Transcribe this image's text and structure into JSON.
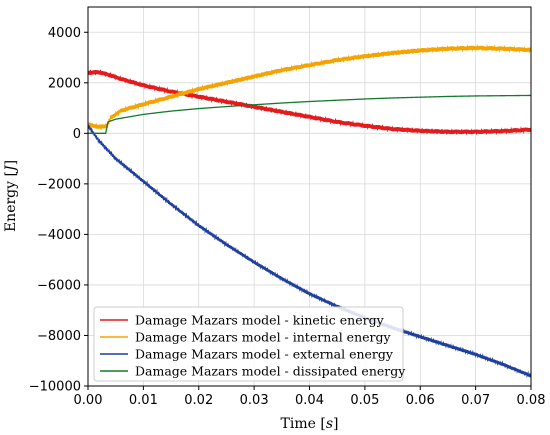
{
  "chart_data": {
    "type": "line",
    "xlabel": "Time [s]",
    "ylabel": "Energy [J]",
    "xlim": [
      0.0,
      0.08
    ],
    "ylim": [
      -10000,
      5000
    ],
    "xticks": [
      0.0,
      0.01,
      0.02,
      0.03,
      0.04,
      0.05,
      0.06,
      0.07,
      0.08
    ],
    "xtick_labels": [
      "0.00",
      "0.01",
      "0.02",
      "0.03",
      "0.04",
      "0.05",
      "0.06",
      "0.07",
      "0.08"
    ],
    "yticks": [
      -10000,
      -8000,
      -6000,
      -4000,
      -2000,
      0,
      2000,
      4000
    ],
    "ytick_labels": [
      "−10000",
      "−8000",
      "−6000",
      "−4000",
      "−2000",
      "0",
      "2000",
      "4000"
    ],
    "grid": true,
    "legend_position": "lower-left",
    "series": [
      {
        "name": "Damage Mazars model - kinetic energy",
        "color": "#e41a1c",
        "x": [
          0.0,
          0.002,
          0.004,
          0.006,
          0.01,
          0.015,
          0.02,
          0.025,
          0.03,
          0.035,
          0.04,
          0.045,
          0.05,
          0.055,
          0.06,
          0.065,
          0.07,
          0.075,
          0.08
        ],
        "y": [
          2400,
          2420,
          2300,
          2150,
          1900,
          1650,
          1450,
          1250,
          1050,
          850,
          650,
          450,
          300,
          170,
          100,
          60,
          60,
          90,
          150
        ]
      },
      {
        "name": "Damage Mazars model - internal energy",
        "color": "#f5a300",
        "x": [
          0.0,
          0.002,
          0.0035,
          0.004,
          0.006,
          0.01,
          0.015,
          0.02,
          0.025,
          0.03,
          0.035,
          0.04,
          0.045,
          0.05,
          0.055,
          0.06,
          0.065,
          0.07,
          0.075,
          0.08
        ],
        "y": [
          350,
          250,
          300,
          600,
          900,
          1150,
          1450,
          1750,
          2000,
          2250,
          2500,
          2700,
          2900,
          3050,
          3180,
          3280,
          3350,
          3380,
          3350,
          3300
        ]
      },
      {
        "name": "Damage Mazars model - external energy",
        "color": "#1f3f9f",
        "x": [
          0.0,
          0.002,
          0.005,
          0.01,
          0.015,
          0.02,
          0.025,
          0.03,
          0.035,
          0.04,
          0.045,
          0.05,
          0.055,
          0.06,
          0.065,
          0.07,
          0.075,
          0.08
        ],
        "y": [
          300,
          -300,
          -1000,
          -1900,
          -2800,
          -3650,
          -4400,
          -5100,
          -5750,
          -6350,
          -6850,
          -7300,
          -7700,
          -8050,
          -8400,
          -8750,
          -9150,
          -9600
        ]
      },
      {
        "name": "Damage Mazars model - dissipated energy",
        "color": "#137a2e",
        "x": [
          0.0,
          0.0032,
          0.0036,
          0.005,
          0.01,
          0.015,
          0.02,
          0.025,
          0.03,
          0.035,
          0.04,
          0.045,
          0.05,
          0.055,
          0.06,
          0.065,
          0.07,
          0.075,
          0.08
        ],
        "y": [
          0,
          0,
          450,
          560,
          750,
          880,
          980,
          1060,
          1130,
          1200,
          1260,
          1310,
          1360,
          1400,
          1430,
          1460,
          1480,
          1490,
          1500
        ]
      }
    ]
  }
}
